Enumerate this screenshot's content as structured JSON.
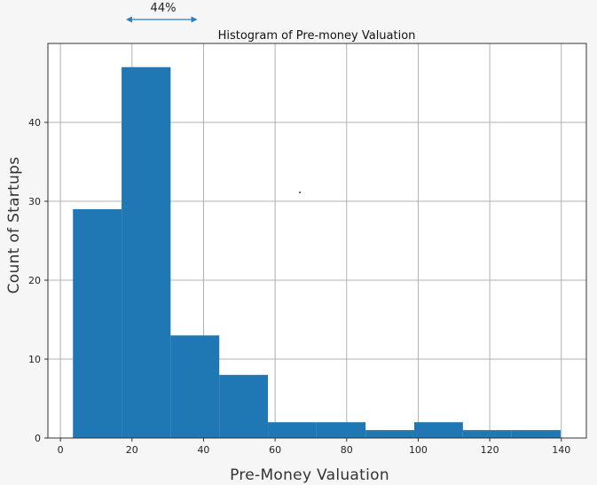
{
  "chart_data": {
    "type": "bar",
    "title": "Histogram of Pre-money Valuation",
    "xlabel": "Pre-Money Valuation",
    "ylabel": "Count of Startups",
    "xlim": [
      -3.5,
      147
    ],
    "ylim": [
      0,
      50
    ],
    "xticks": [
      0,
      20,
      40,
      60,
      80,
      100,
      120,
      140
    ],
    "yticks": [
      0,
      10,
      20,
      30,
      40
    ],
    "grid": true,
    "bins": [
      {
        "x0": 3.5,
        "x1": 17.1,
        "count": 29
      },
      {
        "x0": 17.1,
        "x1": 30.8,
        "count": 47
      },
      {
        "x0": 30.8,
        "x1": 44.4,
        "count": 13
      },
      {
        "x0": 44.4,
        "x1": 58.0,
        "count": 8
      },
      {
        "x0": 58.0,
        "x1": 71.6,
        "count": 2
      },
      {
        "x0": 71.6,
        "x1": 85.3,
        "count": 2
      },
      {
        "x0": 85.3,
        "x1": 98.9,
        "count": 1
      },
      {
        "x0": 98.9,
        "x1": 112.5,
        "count": 2
      },
      {
        "x0": 112.5,
        "x1": 126.1,
        "count": 1
      },
      {
        "x0": 126.1,
        "x1": 139.8,
        "count": 1
      }
    ],
    "annotation": {
      "text": "44%",
      "x0": 18.3,
      "x1": 38.3
    }
  },
  "colors": {
    "bar": "#1f77b4",
    "grid": "#b0b0b0",
    "arrow": "#2e7ebf",
    "plot_bg": "#ffffff"
  }
}
